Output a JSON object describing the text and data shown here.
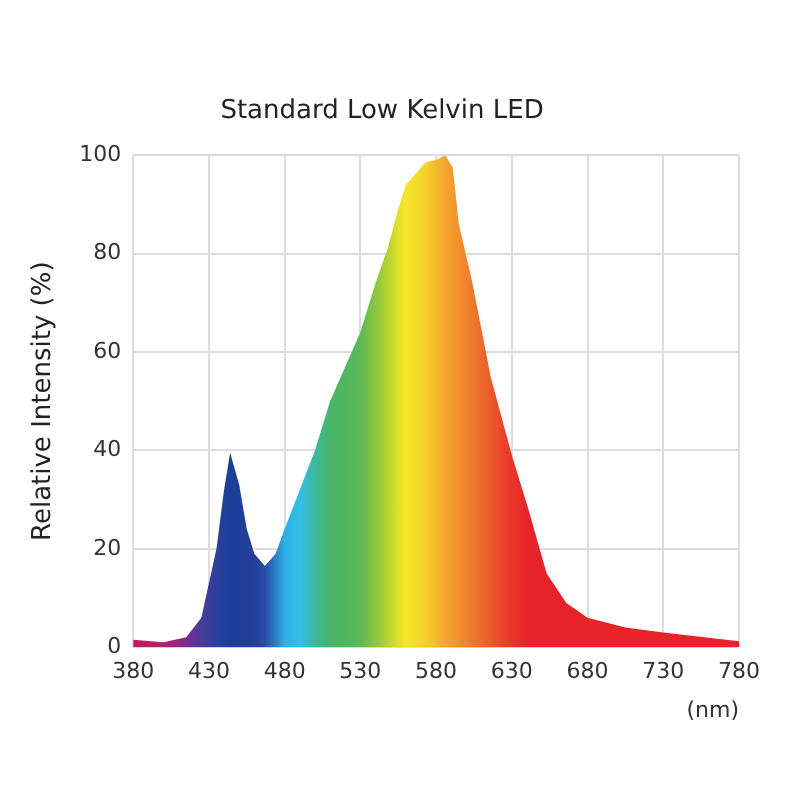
{
  "chart_data": {
    "type": "area",
    "title": "Standard Low Kelvin LED",
    "xlabel": "(nm)",
    "ylabel": "Relative Intensity (%)",
    "x": [
      380,
      400,
      415,
      425,
      435,
      440,
      444,
      450,
      455,
      460,
      467,
      474,
      480,
      490,
      500,
      510,
      520,
      530,
      540,
      548,
      555,
      560,
      573,
      580,
      586,
      591,
      595,
      604,
      616,
      630,
      641,
      653,
      666,
      680,
      705,
      730,
      780
    ],
    "series": [
      {
        "values": [
          1.5,
          1,
          2,
          6,
          20,
          32,
          39.5,
          33,
          24,
          19,
          16.5,
          19,
          24,
          32,
          40,
          50,
          57,
          64,
          74,
          81,
          89,
          94,
          98.5,
          99,
          100,
          97.5,
          86,
          74,
          55,
          39,
          28,
          15,
          9,
          6,
          4,
          3,
          1.2
        ],
        "colors": [
          "#c2185b",
          "#b81d6a",
          "#7b2a90",
          "#4a3a9a",
          "#2a3f9a",
          "#233f99",
          "#1e3f99",
          "#1e3f99",
          "#213f99",
          "#243f98",
          "#2a4ea8",
          "#2a7fc8",
          "#2eaee6",
          "#33c0e8",
          "#3bb8a0",
          "#4cb56a",
          "#50b85c",
          "#5db954",
          "#8dc63f",
          "#b4d334",
          "#e1e028",
          "#f5e62a",
          "#f5d02a",
          "#f5b82c",
          "#f4a52e",
          "#f39a2e",
          "#f28f2e",
          "#ef7a2d",
          "#ec5a2b",
          "#e9352a",
          "#e52329",
          "#e52329",
          "#e52329",
          "#e52329",
          "#e52329",
          "#e52329",
          "#e52329"
        ]
      }
    ],
    "xlim": [
      380,
      780
    ],
    "xticks": [
      380,
      430,
      480,
      530,
      580,
      630,
      680,
      730,
      780
    ],
    "ylim": [
      0,
      100
    ],
    "yticks": [
      0,
      20,
      40,
      60,
      80,
      100
    ],
    "grid": true,
    "legend": false
  }
}
